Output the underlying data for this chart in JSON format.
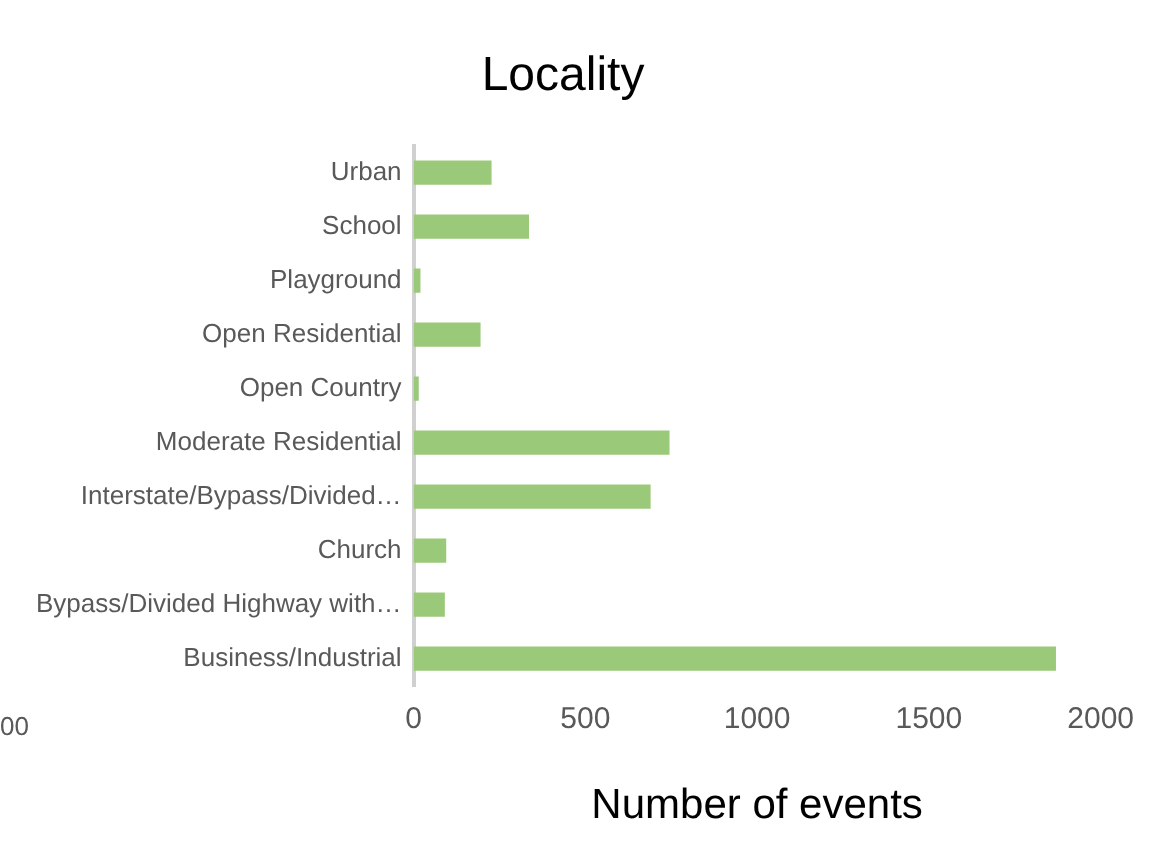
{
  "chart_data": {
    "type": "bar",
    "orientation": "horizontal",
    "title": "Locality",
    "xlabel": "Number of events",
    "categories": [
      "Urban",
      "School",
      "Playground",
      "Open Residential",
      "Open Country",
      "Moderate Residential",
      "Interstate/Bypass/Divided…",
      "Church",
      "Bypass/Divided Highway with…",
      "Business/Industrial"
    ],
    "values": [
      227,
      336,
      20,
      195,
      15,
      745,
      690,
      95,
      91,
      1870
    ],
    "color": "#9bc97a",
    "xlim": [
      0,
      2000
    ],
    "xticks": [
      0,
      500,
      1000,
      1500,
      2000
    ],
    "grid": false,
    "legend": false,
    "annotations": [
      "00"
    ]
  }
}
